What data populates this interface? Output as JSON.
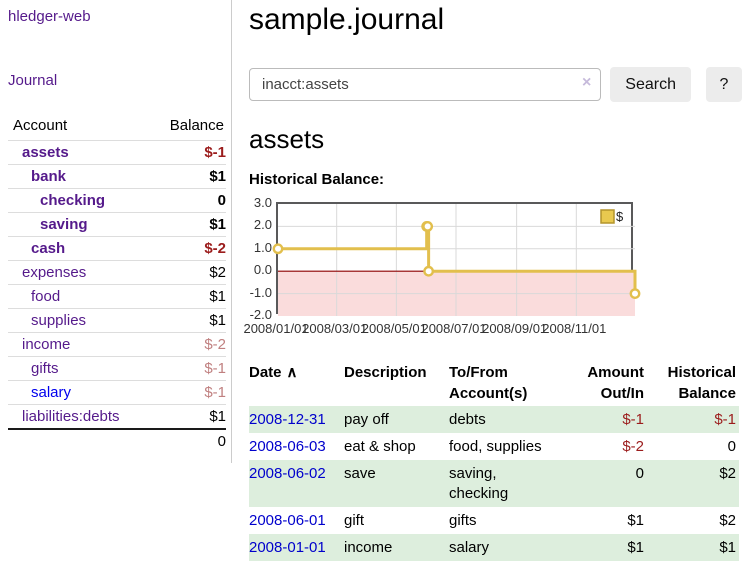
{
  "app": {
    "title": "hledger-web"
  },
  "sidebar": {
    "nav_journal": "Journal",
    "accounts": {
      "col_account": "Account",
      "col_balance": "Balance",
      "rows": [
        {
          "account": "assets",
          "balance": "$-1",
          "indent": 1,
          "bold": true,
          "tone": "neg"
        },
        {
          "account": "bank",
          "balance": "$1",
          "indent": 2,
          "bold": true,
          "tone": ""
        },
        {
          "account": "checking",
          "balance": "0",
          "indent": 3,
          "bold": true,
          "tone": ""
        },
        {
          "account": "saving",
          "balance": "$1",
          "indent": 3,
          "bold": true,
          "tone": ""
        },
        {
          "account": "cash",
          "balance": "$-2",
          "indent": 2,
          "bold": true,
          "tone": "neg"
        },
        {
          "account": "expenses",
          "balance": "$2",
          "indent": 1,
          "bold": false,
          "tone": ""
        },
        {
          "account": "food",
          "balance": "$1",
          "indent": 2,
          "bold": false,
          "tone": ""
        },
        {
          "account": "supplies",
          "balance": "$1",
          "indent": 2,
          "bold": false,
          "tone": ""
        },
        {
          "account": "income",
          "balance": "$-2",
          "indent": 1,
          "bold": false,
          "tone": "negfaded"
        },
        {
          "account": "gifts",
          "balance": "$-1",
          "indent": 2,
          "bold": false,
          "tone": "negfaded"
        },
        {
          "account": "salary",
          "balance": "$-1",
          "indent": 2,
          "bold": false,
          "tone": "negfaded",
          "link": "blue"
        },
        {
          "account": "liabilities:debts",
          "balance": "$1",
          "indent": 1,
          "bold": false,
          "tone": ""
        }
      ],
      "total": "0"
    }
  },
  "main": {
    "title": "sample.journal",
    "search": {
      "value": "inacct:assets",
      "clear_icon": "×",
      "search_button": "Search",
      "help_button": "?"
    },
    "heading": "assets",
    "chart_title": "Historical Balance:"
  },
  "chart_data": {
    "type": "line",
    "step": true,
    "title": "Historical Balance",
    "series": [
      {
        "name": "$",
        "points": [
          [
            "2008-01-01",
            1
          ],
          [
            "2008-06-01",
            2
          ],
          [
            "2008-06-02",
            2
          ],
          [
            "2008-06-03",
            0
          ],
          [
            "2008-12-31",
            -1
          ]
        ]
      }
    ],
    "x_range": [
      "2008-01-01",
      "2008-12-31"
    ],
    "x_ticks": [
      "2008/01/01",
      "2008/03/01",
      "2008/05/01",
      "2008/07/01",
      "2008/09/01",
      "2008/11/01"
    ],
    "y_ticks": [
      "3.0",
      "2.0",
      "1.0",
      "0.0",
      "-1.0",
      "-2.0"
    ],
    "ylim": [
      -2,
      3
    ],
    "legend": {
      "label": "$",
      "position": "top-right"
    },
    "grid": true
  },
  "transactions": {
    "headers": {
      "date": "Date",
      "description": "Description",
      "tofrom_line1": "To/From",
      "tofrom_line2": "Account(s)",
      "amount_line1": "Amount",
      "amount_line2": "Out/In",
      "balance_line1": "Historical",
      "balance_line2": "Balance"
    },
    "sort_indicator": "∧",
    "rows": [
      {
        "date": "2008-12-31",
        "description": "pay off",
        "tofrom": "debts",
        "amount": "$-1",
        "amount_neg": true,
        "balance": "$-1",
        "balance_neg": true
      },
      {
        "date": "2008-06-03",
        "description": "eat & shop",
        "tofrom": "food, supplies",
        "amount": "$-2",
        "amount_neg": true,
        "balance": "0",
        "balance_neg": false
      },
      {
        "date": "2008-06-02",
        "description": "save",
        "tofrom": "saving, checking",
        "amount": "0",
        "amount_neg": false,
        "balance": "$2",
        "balance_neg": false
      },
      {
        "date": "2008-06-01",
        "description": "gift",
        "tofrom": "gifts",
        "amount": "$1",
        "amount_neg": false,
        "balance": "$2",
        "balance_neg": false
      },
      {
        "date": "2008-01-01",
        "description": "income",
        "tofrom": "salary",
        "amount": "$1",
        "amount_neg": false,
        "balance": "$1",
        "balance_neg": false
      }
    ]
  },
  "colors": {
    "link_purple": "#551a8b",
    "link_blue": "#0000cc",
    "negative_red": "#9b1c1c",
    "negative_faded": "#c08080",
    "row_green": "#ddeedd",
    "chart_line": "#e2bf4d",
    "chart_legend_fill": "#e9c94f",
    "chart_legend_border": "#b3942c",
    "chart_negative_fill": "#fadcdc",
    "chart_zero_line": "#8b0000",
    "chart_grid": "#d9d9d9",
    "chart_border": "#59595a"
  }
}
